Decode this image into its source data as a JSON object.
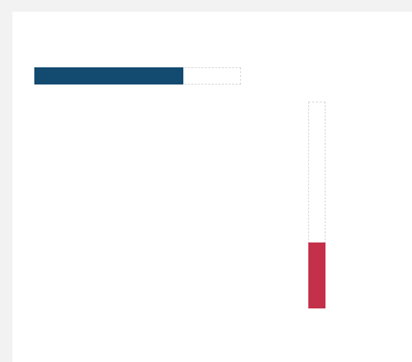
{
  "progress_bars": {
    "horizontal": {
      "orientation": "horizontal",
      "fraction": 0.72,
      "fill_color": "#134a70",
      "track_border_color": "#cfcfcf"
    },
    "vertical": {
      "orientation": "vertical",
      "fraction": 0.32,
      "fill_color": "#c4304a",
      "track_border_color": "#cfcfcf"
    }
  }
}
